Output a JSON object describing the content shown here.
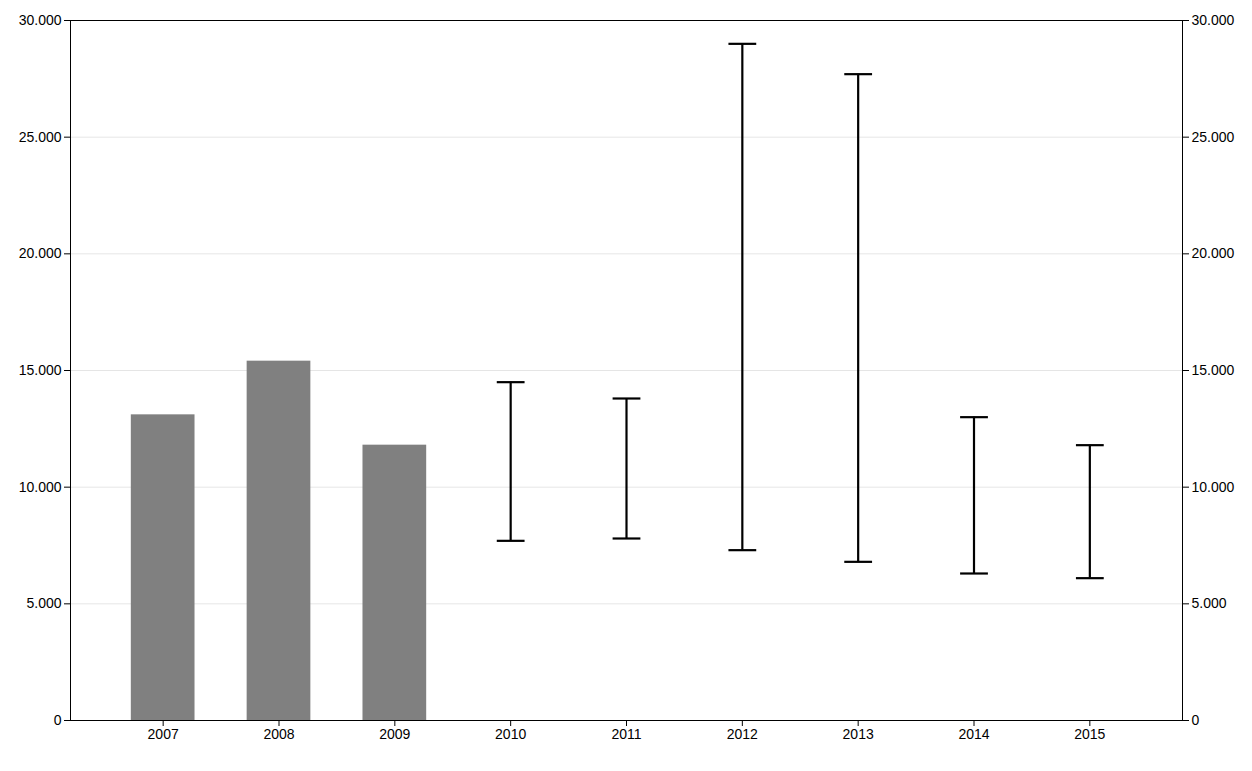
{
  "chart_data": {
    "type": "bar",
    "x": [
      2007,
      2008,
      2009,
      2010,
      2011,
      2012,
      2013,
      2014,
      2015
    ],
    "series": [
      {
        "type": "bar",
        "color": "#808080",
        "values": [
          13100,
          15400,
          11800,
          null,
          null,
          null,
          null,
          null,
          null
        ]
      },
      {
        "type": "errorbar",
        "color": "#000000",
        "lower": [
          null,
          null,
          null,
          7700,
          7800,
          7300,
          6800,
          6300,
          6100
        ],
        "upper": [
          null,
          null,
          null,
          14500,
          13800,
          29000,
          27700,
          13000,
          11800
        ]
      }
    ],
    "xlim": [
      2006.2,
      2015.8
    ],
    "xticks": [
      2007,
      2008,
      2009,
      2010,
      2011,
      2012,
      2013,
      2014,
      2015
    ],
    "ylim": [
      0,
      30000
    ],
    "yticks": [
      0,
      {
        "value": 5000,
        "label": "5.000"
      },
      {
        "value": 10000,
        "label": "10.000"
      },
      {
        "value": 15000,
        "label": "15.000"
      },
      {
        "value": 20000,
        "label": "20.000"
      },
      {
        "value": 25000,
        "label": "25.000"
      },
      {
        "value": 30000,
        "label": "30.000"
      }
    ],
    "y2lim": [
      0,
      30000
    ],
    "y2ticks": [
      0,
      {
        "value": 5000,
        "label": "5.000"
      },
      {
        "value": 10000,
        "label": "10.000"
      },
      {
        "value": 15000,
        "label": "15.000"
      },
      {
        "value": 20000,
        "label": "20.000"
      },
      {
        "value": 25000,
        "label": "25.000"
      },
      {
        "value": 30000,
        "label": "30.000"
      }
    ],
    "grid": true
  }
}
